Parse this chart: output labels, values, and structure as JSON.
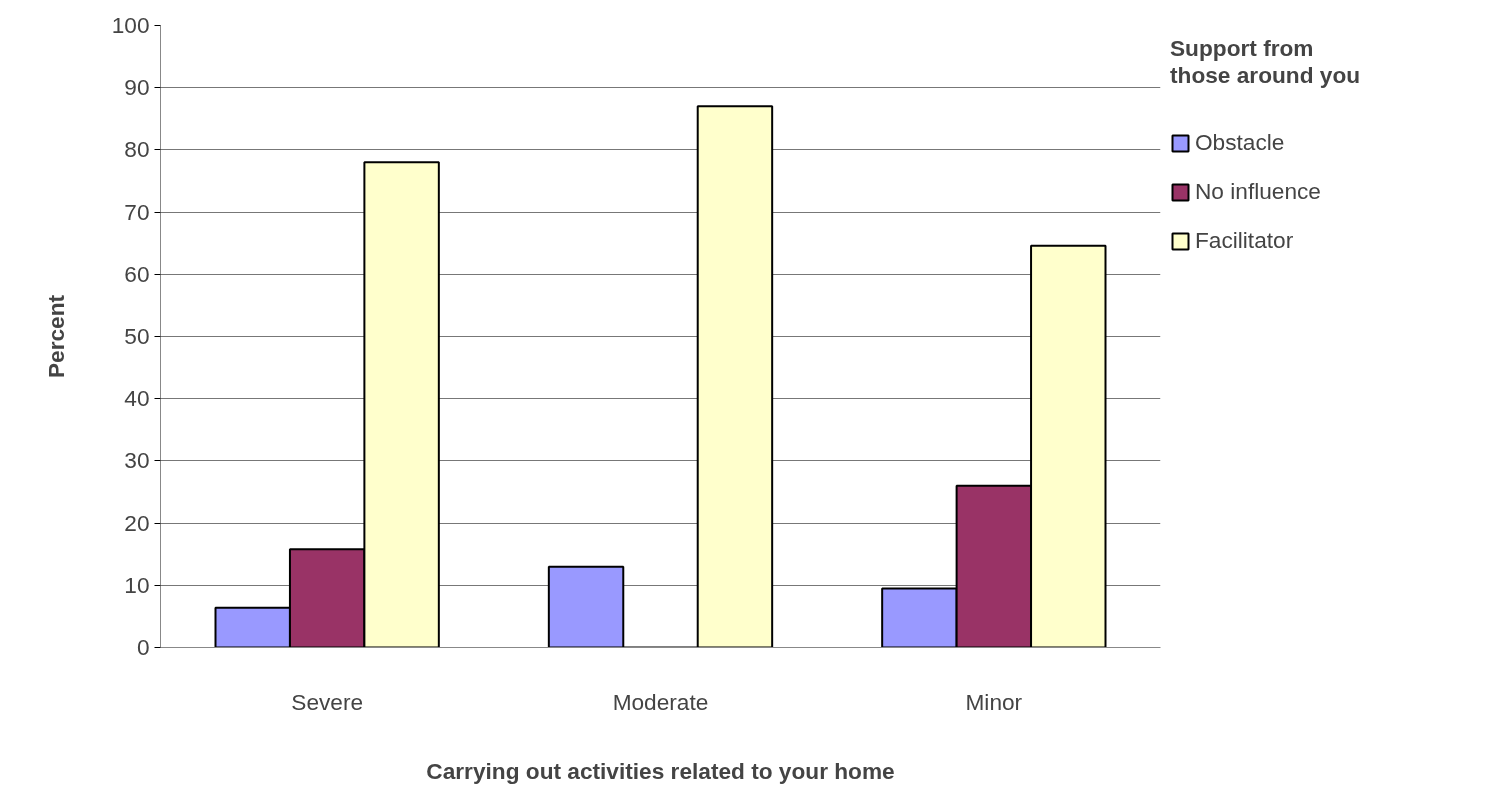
{
  "chart_data": {
    "type": "bar",
    "xlabel": "Carrying out activities related to your home",
    "ylabel": "Percent",
    "legend_title": "Support from\nthose around you",
    "categories": [
      "Severe",
      "Moderate",
      "Minor"
    ],
    "series": [
      {
        "name": "Obstacle",
        "color": "#9999ff",
        "values": [
          6.4,
          13,
          9.5
        ]
      },
      {
        "name": "No influence",
        "color": "#993366",
        "values": [
          15.8,
          null,
          26
        ]
      },
      {
        "name": "Facilitator",
        "color": "#ffffcc",
        "values": [
          78,
          87,
          64.6
        ]
      }
    ],
    "ylim": [
      0,
      100
    ],
    "yticks": [
      0,
      10,
      20,
      30,
      40,
      50,
      60,
      70,
      80,
      90,
      100
    ],
    "grid": "y",
    "legend": "right"
  }
}
